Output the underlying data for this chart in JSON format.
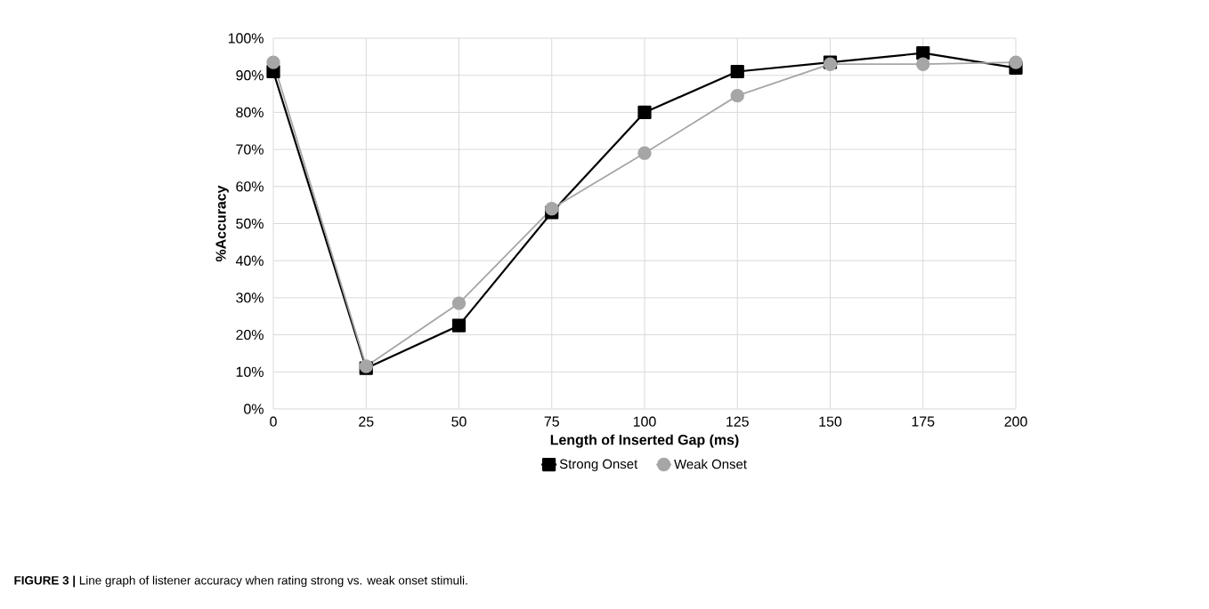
{
  "chart_data": {
    "type": "line",
    "xlabel": "Length of Inserted Gap (ms)",
    "ylabel": "%Accuracy",
    "x": [
      0,
      25,
      50,
      75,
      100,
      125,
      150,
      175,
      200
    ],
    "series": [
      {
        "name": "Strong Onset",
        "color": "#000000",
        "marker": "square",
        "values": [
          91,
          11,
          22.5,
          53,
          80,
          91,
          93.5,
          96,
          92
        ]
      },
      {
        "name": "Weak Onset",
        "color": "#a6a6a6",
        "marker": "circle",
        "values": [
          93.5,
          11.5,
          28.5,
          54,
          69,
          84.5,
          93,
          93,
          93.5
        ]
      }
    ],
    "xlim": [
      0,
      200
    ],
    "xticks": [
      0,
      25,
      50,
      75,
      100,
      125,
      150,
      175,
      200
    ],
    "ylim": [
      0,
      100
    ],
    "yticks": [
      {
        "value": 0,
        "label": "0%"
      },
      {
        "value": 10,
        "label": "10%"
      },
      {
        "value": 20,
        "label": "20%"
      },
      {
        "value": 30,
        "label": "30%"
      },
      {
        "value": 40,
        "label": "40%"
      },
      {
        "value": 50,
        "label": "50%"
      },
      {
        "value": 60,
        "label": "60%"
      },
      {
        "value": 70,
        "label": "70%"
      },
      {
        "value": 80,
        "label": "80%"
      },
      {
        "value": 90,
        "label": "90%"
      },
      {
        "value": 100,
        "label": "100%"
      }
    ],
    "grid": true,
    "legend": "bottom",
    "annotations": [
      "**FIGURE 3 |** Line graph of listener accuracy when rating strong vs. weak onset stimuli."
    ]
  }
}
